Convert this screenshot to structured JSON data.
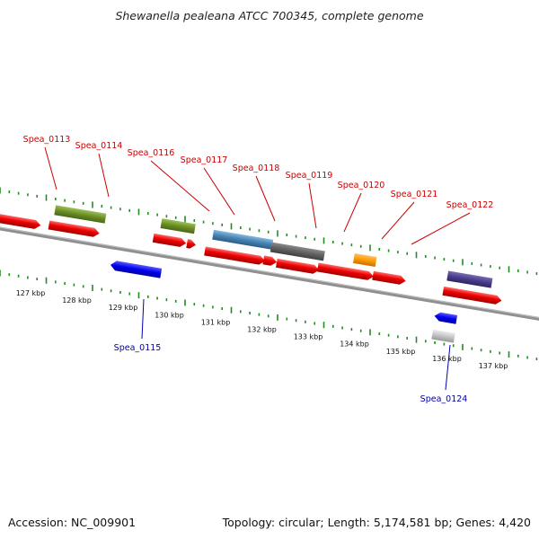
{
  "title": "Shewanella pealeana ATCC 700345, complete genome",
  "footer": {
    "accession": "Accession: NC_009901",
    "summary": "Topology: circular; Length: 5,174,581 bp; Genes: 4,420"
  },
  "colors": {
    "label_forward": "#cc0000",
    "label_reverse": "#0000aa",
    "tick": "#228b22",
    "backbone": "#888888"
  },
  "ticks": [
    "127 kbp",
    "128 kbp",
    "129 kbp",
    "130 kbp",
    "131 kbp",
    "132 kbp",
    "133 kbp",
    "134 kbp",
    "135 kbp",
    "136 kbp",
    "137 kbp"
  ],
  "gene_labels": [
    {
      "text": "Spea_0113",
      "strand": "forward"
    },
    {
      "text": "Spea_0114",
      "strand": "forward"
    },
    {
      "text": "Spea_0116",
      "strand": "forward"
    },
    {
      "text": "Spea_0117",
      "strand": "forward"
    },
    {
      "text": "Spea_0118",
      "strand": "forward"
    },
    {
      "text": "Spea_0119",
      "strand": "forward"
    },
    {
      "text": "Spea_0120",
      "strand": "forward"
    },
    {
      "text": "Spea_0121",
      "strand": "forward"
    },
    {
      "text": "Spea_0122",
      "strand": "forward"
    },
    {
      "text": "Spea_0115",
      "strand": "reverse"
    },
    {
      "text": "Spea_0124",
      "strand": "reverse"
    }
  ]
}
